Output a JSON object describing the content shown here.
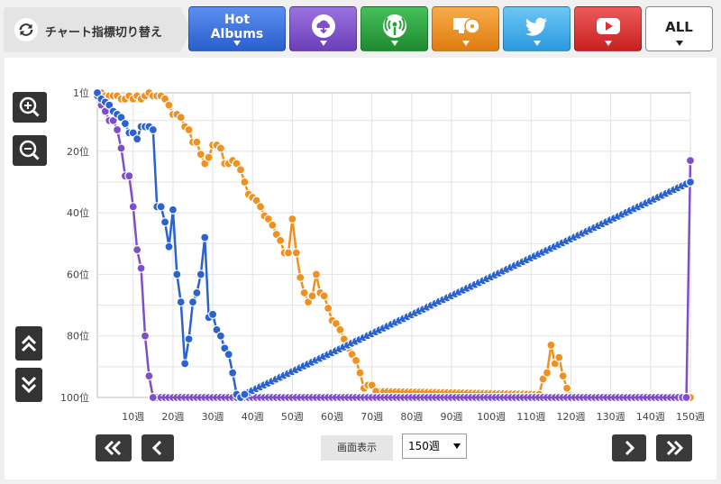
{
  "topbar": {
    "toggle_label": "チャート指標切り替え",
    "tabs": [
      {
        "id": "hot-albums",
        "label": "Hot\nAlbums",
        "color": "#3a6fd8",
        "icon": "text"
      },
      {
        "id": "download",
        "label": "",
        "color": "#7e4fc8",
        "icon": "cloud-download-icon"
      },
      {
        "id": "broadcast",
        "label": "",
        "color": "#28a03c",
        "icon": "broadcast-icon"
      },
      {
        "id": "pc-cd",
        "label": "",
        "color": "#f0901e",
        "icon": "pc-cd-icon"
      },
      {
        "id": "twitter",
        "label": "",
        "color": "#3aa9ea",
        "icon": "twitter-icon"
      },
      {
        "id": "youtube",
        "label": "",
        "color": "#dd3030",
        "icon": "youtube-icon"
      },
      {
        "id": "all",
        "label": "ALL",
        "color": "#ffffff",
        "icon": "text"
      }
    ]
  },
  "controls": {
    "view_label": "画面表示",
    "view_value": "150週"
  },
  "chart_data": {
    "type": "line",
    "title": "",
    "xlabel": "",
    "ylabel": "",
    "x_range": [
      1,
      150
    ],
    "y_range": [
      1,
      100
    ],
    "y_inverted": true,
    "x_ticks": [
      10,
      20,
      30,
      40,
      50,
      60,
      70,
      80,
      90,
      100,
      110,
      120,
      130,
      140,
      150
    ],
    "x_tick_labels": [
      "10週",
      "20週",
      "30週",
      "40週",
      "50週",
      "60週",
      "70週",
      "80週",
      "90週",
      "100週",
      "110週",
      "120週",
      "130週",
      "140週",
      "150週"
    ],
    "y_ticks": [
      1,
      20,
      40,
      60,
      80,
      100
    ],
    "y_tick_labels": [
      "1位",
      "20位",
      "40位",
      "60位",
      "80位",
      "100位"
    ],
    "grid": true,
    "series": [
      {
        "name": "",
        "color": "#f0901e",
        "points": [
          [
            1,
            1
          ],
          [
            2,
            1
          ],
          [
            3,
            2
          ],
          [
            4,
            2
          ],
          [
            5,
            2
          ],
          [
            6,
            2
          ],
          [
            7,
            3
          ],
          [
            8,
            3
          ],
          [
            9,
            2
          ],
          [
            10,
            3
          ],
          [
            11,
            2
          ],
          [
            12,
            3
          ],
          [
            13,
            2
          ],
          [
            14,
            1
          ],
          [
            15,
            2
          ],
          [
            16,
            2
          ],
          [
            17,
            2
          ],
          [
            18,
            3
          ],
          [
            19,
            5
          ],
          [
            20,
            8
          ],
          [
            21,
            8
          ],
          [
            22,
            9
          ],
          [
            23,
            12
          ],
          [
            24,
            13
          ],
          [
            25,
            17
          ],
          [
            26,
            17
          ],
          [
            27,
            21
          ],
          [
            28,
            24
          ],
          [
            29,
            22
          ],
          [
            30,
            18
          ],
          [
            31,
            18
          ],
          [
            32,
            19
          ],
          [
            33,
            24
          ],
          [
            34,
            24
          ],
          [
            35,
            23
          ],
          [
            36,
            24
          ],
          [
            37,
            26
          ],
          [
            38,
            30
          ],
          [
            39,
            34
          ],
          [
            40,
            35
          ],
          [
            41,
            36
          ],
          [
            42,
            38
          ],
          [
            43,
            41
          ],
          [
            44,
            42
          ],
          [
            45,
            44
          ],
          [
            46,
            47
          ],
          [
            47,
            49
          ],
          [
            48,
            53
          ],
          [
            49,
            53
          ],
          [
            50,
            42
          ],
          [
            51,
            53
          ],
          [
            52,
            61
          ],
          [
            53,
            66
          ],
          [
            54,
            69
          ],
          [
            55,
            67
          ],
          [
            56,
            60
          ],
          [
            57,
            66
          ],
          [
            58,
            67
          ],
          [
            59,
            71
          ],
          [
            60,
            75
          ],
          [
            61,
            76
          ],
          [
            62,
            78
          ],
          [
            63,
            81
          ],
          [
            64,
            84
          ],
          [
            65,
            86
          ],
          [
            66,
            88
          ],
          [
            67,
            92
          ],
          [
            68,
            97
          ],
          [
            69,
            96
          ],
          [
            70,
            96
          ],
          [
            71,
            98
          ],
          [
            112,
            99
          ],
          [
            113,
            94
          ],
          [
            114,
            92
          ],
          [
            115,
            83
          ],
          [
            116,
            89
          ],
          [
            117,
            87
          ],
          [
            118,
            93
          ],
          [
            119,
            97
          ],
          [
            120,
            100
          ],
          [
            150,
            100
          ]
        ]
      },
      {
        "name": "",
        "color": "#7e4fc8",
        "points": [
          [
            1,
            2
          ],
          [
            2,
            5
          ],
          [
            3,
            7
          ],
          [
            4,
            10
          ],
          [
            5,
            10
          ],
          [
            6,
            13
          ],
          [
            7,
            19
          ],
          [
            8,
            28
          ],
          [
            9,
            28
          ],
          [
            10,
            38
          ],
          [
            11,
            52
          ],
          [
            12,
            58
          ],
          [
            13,
            80
          ],
          [
            14,
            93
          ],
          [
            15,
            100
          ],
          [
            148,
            100
          ],
          [
            149,
            100
          ],
          [
            150,
            23
          ]
        ]
      },
      {
        "name": "",
        "color": "#2a62d0",
        "points": [
          [
            1,
            1
          ],
          [
            2,
            3
          ],
          [
            3,
            4
          ],
          [
            4,
            5
          ],
          [
            5,
            7
          ],
          [
            6,
            8
          ],
          [
            7,
            9
          ],
          [
            8,
            11
          ],
          [
            9,
            14
          ],
          [
            10,
            14
          ],
          [
            11,
            16
          ],
          [
            12,
            12
          ],
          [
            13,
            12
          ],
          [
            14,
            12
          ],
          [
            15,
            13
          ],
          [
            16,
            38
          ],
          [
            17,
            38
          ],
          [
            18,
            43
          ],
          [
            19,
            51
          ],
          [
            20,
            39
          ],
          [
            21,
            60
          ],
          [
            22,
            69
          ],
          [
            23,
            89
          ],
          [
            24,
            81
          ],
          [
            25,
            69
          ],
          [
            26,
            66
          ],
          [
            27,
            60
          ],
          [
            28,
            48
          ],
          [
            29,
            74
          ],
          [
            30,
            73
          ],
          [
            31,
            78
          ],
          [
            32,
            80
          ],
          [
            33,
            84
          ],
          [
            34,
            86
          ],
          [
            35,
            92
          ],
          [
            36,
            99
          ],
          [
            37,
            100
          ],
          [
            38,
            99
          ],
          [
            150,
            30
          ]
        ]
      }
    ]
  }
}
